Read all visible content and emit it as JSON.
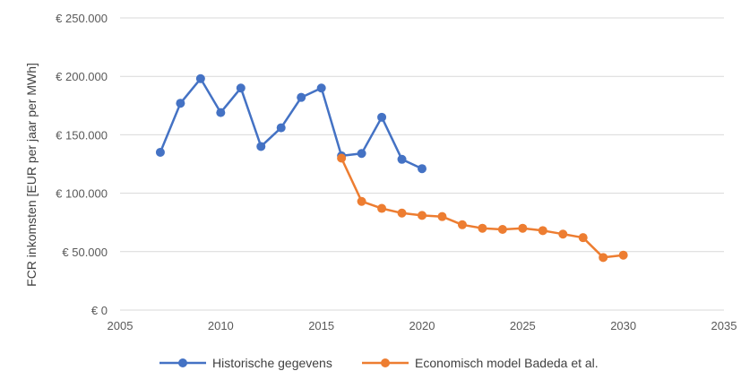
{
  "chart_data": {
    "type": "line",
    "title": "",
    "xlabel": "",
    "ylabel": "FCR inkomsten [EUR per jaar per MWh]",
    "xlim": [
      2005,
      2035
    ],
    "ylim": [
      0,
      250000
    ],
    "x_ticks": [
      2005,
      2010,
      2015,
      2020,
      2025,
      2030,
      2035
    ],
    "x_tick_labels": [
      "2005",
      "2010",
      "2015",
      "2020",
      "2025",
      "2030",
      "2035"
    ],
    "y_ticks": [
      0,
      50000,
      100000,
      150000,
      200000,
      250000
    ],
    "y_tick_labels": [
      "€ 0",
      "€ 50.000",
      "€ 100.000",
      "€ 150.000",
      "€ 200.000",
      "€ 250.000"
    ],
    "grid": "horizontal",
    "legend_position": "bottom",
    "series": [
      {
        "name": "Historische gegevens",
        "color": "#4472C4",
        "x": [
          2007,
          2008,
          2009,
          2010,
          2011,
          2012,
          2013,
          2014,
          2015,
          2016,
          2017,
          2018,
          2019,
          2020
        ],
        "y": [
          135000,
          177000,
          198000,
          169000,
          190000,
          140000,
          156000,
          182000,
          190000,
          132000,
          134000,
          165000,
          129000,
          121000
        ]
      },
      {
        "name": "Economisch model Badeda et al.",
        "color": "#ED7D31",
        "x": [
          2016,
          2017,
          2018,
          2019,
          2020,
          2021,
          2022,
          2023,
          2024,
          2025,
          2026,
          2027,
          2028,
          2029,
          2030
        ],
        "y": [
          130000,
          93000,
          87000,
          83000,
          81000,
          80000,
          73000,
          70000,
          69000,
          70000,
          68000,
          65000,
          62000,
          45000,
          47000
        ]
      }
    ]
  }
}
